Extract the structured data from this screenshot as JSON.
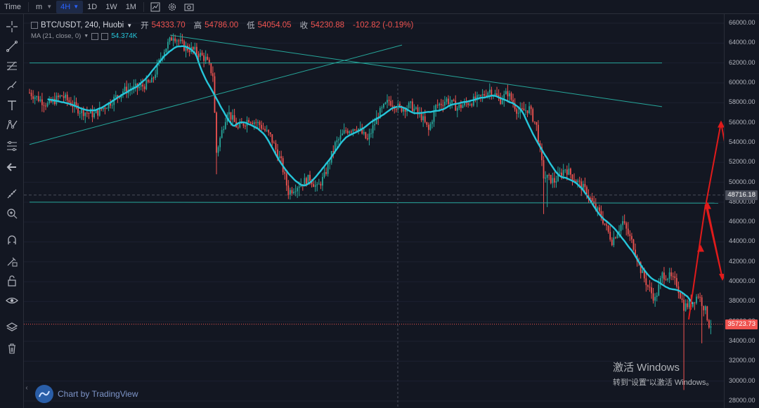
{
  "topbar": {
    "time_label": "Time",
    "interval_minutes": "m",
    "interval_active": "4H",
    "interval_1d": "1D",
    "interval_1w": "1W",
    "interval_1m": "1M"
  },
  "legend": {
    "symbol": "BTC/USDT, 240, Huobi",
    "open_label": "开",
    "open": "54333.70",
    "high_label": "高",
    "high": "54786.00",
    "low_label": "低",
    "low": "54054.05",
    "close_label": "收",
    "close": "54230.88",
    "change": "-102.82 (-0.19%)",
    "ma_label": "MA (21, close, 0)",
    "ma_value": "54.374K"
  },
  "price_scale": {
    "ticks": [
      "66000.00",
      "64000.00",
      "62000.00",
      "60000.00",
      "58000.00",
      "56000.00",
      "54000.00",
      "52000.00",
      "50000.00",
      "48000.00",
      "46000.00",
      "44000.00",
      "42000.00",
      "40000.00",
      "38000.00",
      "36000.00",
      "34000.00",
      "32000.00",
      "30000.00",
      "28000.00"
    ],
    "crosshair_price": "48716.18",
    "last_price": "35723.73"
  },
  "branding": {
    "label": "Chart by TradingView"
  },
  "os_notice": {
    "line1": "激活 Windows",
    "line2": "转到\"设置\"以激活 Windows。"
  },
  "colors": {
    "background": "#131722",
    "up": "#26a69a",
    "down": "#ef5350",
    "ma_line": "#26c6da",
    "trendline": "#26a69a",
    "annotation_arrow": "#e01b1b",
    "accent": "#2962ff"
  },
  "chart_data": {
    "type": "candlestick",
    "symbol": "BTC/USDT",
    "interval": "240",
    "exchange": "Huobi",
    "ylim": [
      28000,
      66000
    ],
    "last_price": 35723.73,
    "crosshair_price": 48716.18,
    "ma": {
      "name": "MA (21, close, 0)",
      "value": "54.374K"
    },
    "close_path_anchors": [
      [
        0,
        59000
      ],
      [
        10,
        57800
      ],
      [
        18,
        58700
      ],
      [
        28,
        57200
      ],
      [
        36,
        56800
      ],
      [
        44,
        57900
      ],
      [
        52,
        59200
      ],
      [
        62,
        59600
      ],
      [
        68,
        60100
      ],
      [
        74,
        63000
      ],
      [
        80,
        64800
      ],
      [
        86,
        63600
      ],
      [
        92,
        63200
      ],
      [
        98,
        62400
      ],
      [
        102,
        60800
      ],
      [
        104,
        53000
      ],
      [
        110,
        57200
      ],
      [
        116,
        55400
      ],
      [
        122,
        56400
      ],
      [
        128,
        55800
      ],
      [
        134,
        54600
      ],
      [
        140,
        52000
      ],
      [
        144,
        49000
      ],
      [
        150,
        49800
      ],
      [
        156,
        50400
      ],
      [
        160,
        49400
      ],
      [
        164,
        50600
      ],
      [
        170,
        53800
      ],
      [
        176,
        55200
      ],
      [
        182,
        55600
      ],
      [
        188,
        54200
      ],
      [
        194,
        56800
      ],
      [
        200,
        58200
      ],
      [
        206,
        57400
      ],
      [
        212,
        57700
      ],
      [
        218,
        56600
      ],
      [
        222,
        55200
      ],
      [
        226,
        57600
      ],
      [
        232,
        58300
      ],
      [
        238,
        57500
      ],
      [
        244,
        58000
      ],
      [
        250,
        58400
      ],
      [
        256,
        59300
      ],
      [
        262,
        58300
      ],
      [
        266,
        59000
      ],
      [
        272,
        57000
      ],
      [
        278,
        57400
      ],
      [
        282,
        55600
      ],
      [
        286,
        50600
      ],
      [
        292,
        50100
      ],
      [
        298,
        51400
      ],
      [
        304,
        50200
      ],
      [
        310,
        49000
      ],
      [
        314,
        47600
      ],
      [
        318,
        46600
      ],
      [
        324,
        44100
      ],
      [
        330,
        46000
      ],
      [
        336,
        43600
      ],
      [
        340,
        41200
      ],
      [
        344,
        39500
      ],
      [
        348,
        38200
      ],
      [
        352,
        40700
      ],
      [
        356,
        40500
      ],
      [
        360,
        39800
      ],
      [
        364,
        37500
      ],
      [
        368,
        37800
      ],
      [
        372,
        38700
      ],
      [
        376,
        37100
      ],
      [
        378,
        35700
      ]
    ]
  }
}
